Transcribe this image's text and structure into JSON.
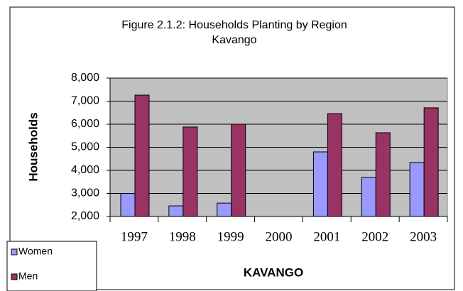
{
  "chart_data": {
    "type": "bar",
    "title": "Figure 2.1.2:  Households Planting by Region",
    "subtitle": "Kavango",
    "x_label": "KAVANGO",
    "y_label": "Households",
    "categories": [
      "1997",
      "1998",
      "1999",
      "2000",
      "2001",
      "2002",
      "2003"
    ],
    "series": [
      {
        "name": "Women",
        "color": "#9999ff",
        "values": [
          3000,
          2460,
          2580,
          null,
          4800,
          3690,
          4340
        ]
      },
      {
        "name": "Men",
        "color": "#993366",
        "values": [
          7260,
          5880,
          6000,
          null,
          6460,
          5630,
          6710
        ]
      }
    ],
    "ylim": [
      2000,
      8000
    ],
    "yticks": [
      {
        "value": 2000,
        "label": "2,000"
      },
      {
        "value": 3000,
        "label": "3,000"
      },
      {
        "value": 4000,
        "label": "4,000"
      },
      {
        "value": 5000,
        "label": "5,000"
      },
      {
        "value": 6000,
        "label": "6,000"
      },
      {
        "value": 7000,
        "label": "7,000"
      },
      {
        "value": 8000,
        "label": "8,000"
      }
    ],
    "grid": true,
    "legend": "bottom-left"
  }
}
